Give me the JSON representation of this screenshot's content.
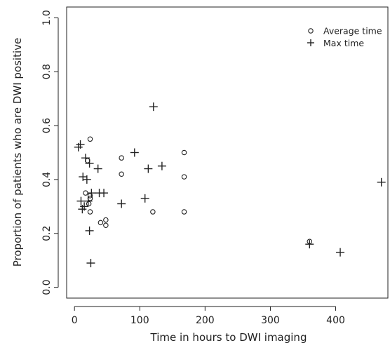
{
  "chart_data": {
    "type": "scatter",
    "xlabel": "Time in hours to DWI imaging",
    "ylabel": "Proportion of patients who are DWI positive",
    "xlim": [
      -12,
      480
    ],
    "ylim": [
      -0.04,
      1.04
    ],
    "x_ticks": [
      0,
      100,
      200,
      300,
      400
    ],
    "x_tick_labels": [
      "0",
      "100",
      "200",
      "300",
      "400"
    ],
    "y_ticks": [
      0,
      0.2,
      0.4,
      0.6,
      0.8,
      1.0
    ],
    "y_tick_labels": [
      "0.0",
      "0.2",
      "0.4",
      "0.6",
      "0.8",
      "1.0"
    ],
    "grid": false,
    "legend_position": "top-right",
    "series": [
      {
        "name": "Average time",
        "marker": "circle",
        "points": [
          [
            17,
            0.35
          ],
          [
            20,
            0.47
          ],
          [
            22,
            0.31
          ],
          [
            24,
            0.34
          ],
          [
            24,
            0.33
          ],
          [
            24,
            0.28
          ],
          [
            24,
            0.55
          ],
          [
            40,
            0.24
          ],
          [
            48,
            0.25
          ],
          [
            48,
            0.23
          ],
          [
            72,
            0.48
          ],
          [
            72,
            0.42
          ],
          [
            120,
            0.28
          ],
          [
            168,
            0.5
          ],
          [
            168,
            0.41
          ],
          [
            168,
            0.28
          ],
          [
            360,
            0.17
          ]
        ]
      },
      {
        "name": "Max time",
        "marker": "plus",
        "points": [
          [
            6,
            0.52
          ],
          [
            9,
            0.53
          ],
          [
            10,
            0.32
          ],
          [
            12,
            0.29
          ],
          [
            13,
            0.41
          ],
          [
            15,
            0.3
          ],
          [
            17,
            0.48
          ],
          [
            19,
            0.4
          ],
          [
            21,
            0.32
          ],
          [
            23,
            0.46
          ],
          [
            23,
            0.21
          ],
          [
            25,
            0.09
          ],
          [
            26,
            0.35
          ],
          [
            36,
            0.44
          ],
          [
            38,
            0.35
          ],
          [
            45,
            0.35
          ],
          [
            72,
            0.31
          ],
          [
            92,
            0.5
          ],
          [
            108,
            0.33
          ],
          [
            113,
            0.44
          ],
          [
            121,
            0.67
          ],
          [
            134,
            0.45
          ],
          [
            360,
            0.16
          ],
          [
            407,
            0.13
          ],
          [
            470,
            0.39
          ]
        ]
      }
    ]
  }
}
